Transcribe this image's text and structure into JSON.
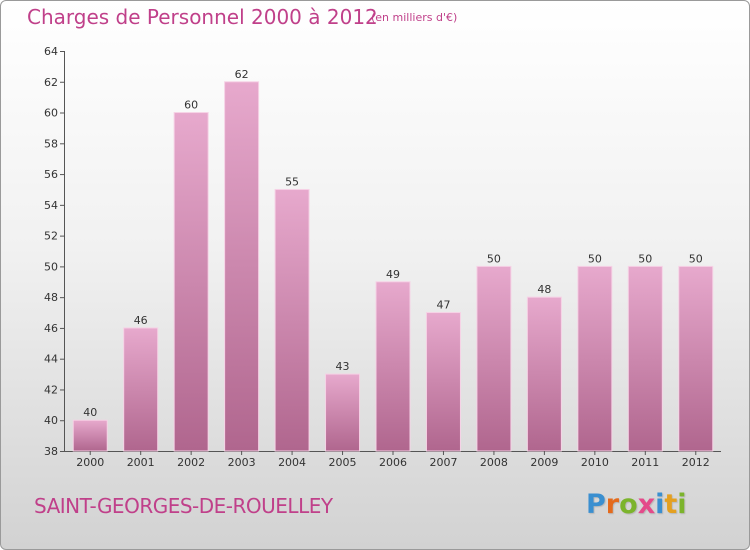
{
  "header": {
    "title": "Charges de Personnel 2000 à 2012",
    "subtitle": "(en milliers d'€)"
  },
  "footer": {
    "commune": "SAINT-GEORGES-DE-ROUELLEY",
    "logo": {
      "letters": [
        "P",
        "r",
        "o",
        "x",
        "i",
        "t",
        "i"
      ],
      "colors": [
        "#3a8fd0",
        "#e46a1c",
        "#7cb42c",
        "#e44a8a",
        "#3a8fd0",
        "#e4a020",
        "#7cb42c"
      ]
    }
  },
  "colors": {
    "bar_top": "#e7a9cd",
    "bar_bottom": "#b0668e",
    "bar_edge": "#f6d2e6",
    "text_accent": "#c0408a"
  },
  "chart_data": {
    "type": "bar",
    "title": "Charges de Personnel 2000 à 2012",
    "subtitle": "(en milliers d'€)",
    "categories": [
      "2000",
      "2001",
      "2002",
      "2003",
      "2004",
      "2005",
      "2006",
      "2007",
      "2008",
      "2009",
      "2010",
      "2011",
      "2012"
    ],
    "values": [
      40,
      46,
      60,
      62,
      55,
      43,
      49,
      47,
      50,
      48,
      50,
      50,
      50
    ],
    "data_labels": [
      "40",
      "46",
      "60",
      "62",
      "55",
      "43",
      "49",
      "47",
      "50",
      "48",
      "50",
      "50",
      "50"
    ],
    "ylim": [
      38,
      64
    ],
    "yticks": [
      38,
      40,
      42,
      44,
      46,
      48,
      50,
      52,
      54,
      56,
      58,
      60,
      62,
      64
    ],
    "grid": false,
    "xlabel": "",
    "ylabel": ""
  }
}
